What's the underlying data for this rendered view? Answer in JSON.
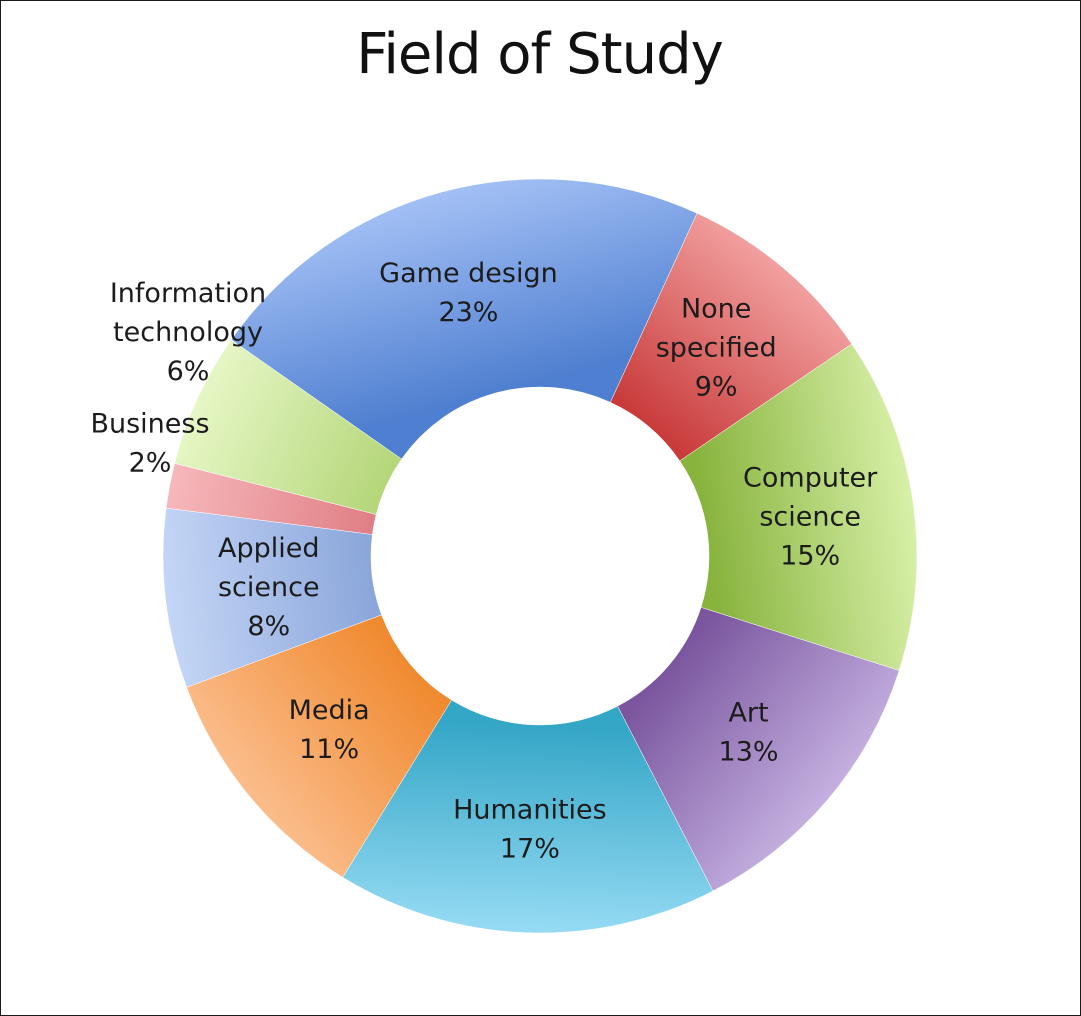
{
  "chart_data": {
    "type": "pie",
    "style": "doughnut",
    "title": "Field of Study",
    "legend": "none",
    "slices": [
      {
        "label_lines": [
          "Game design"
        ],
        "value": 23,
        "value_label": "23%",
        "color": "#4f7fd0",
        "color_light": "#a3c0f5"
      },
      {
        "label_lines": [
          "None",
          "specified"
        ],
        "value": 9,
        "value_label": "9%",
        "color": "#c93b3b",
        "color_light": "#f2a0a0"
      },
      {
        "label_lines": [
          "Computer",
          "science"
        ],
        "value": 15,
        "value_label": "15%",
        "color": "#88b43e",
        "color_light": "#d8f0a8"
      },
      {
        "label_lines": [
          "Art"
        ],
        "value": 13,
        "value_label": "13%",
        "color": "#7b569f",
        "color_light": "#c4b0e0"
      },
      {
        "label_lines": [
          "Humanities"
        ],
        "value": 17,
        "value_label": "17%",
        "color": "#34a6c6",
        "color_light": "#96dbf4"
      },
      {
        "label_lines": [
          "Media"
        ],
        "value": 11,
        "value_label": "11%",
        "color": "#f08a30",
        "color_light": "#fbbd8c"
      },
      {
        "label_lines": [
          "Applied",
          "science"
        ],
        "value": 8,
        "value_label": "8%",
        "color": "#8ba6db",
        "color_light": "#c4d6f6"
      },
      {
        "label_lines": [
          "Business"
        ],
        "value": 2,
        "value_label": "2%",
        "color": "#e07f85",
        "color_light": "#f6b8bb"
      },
      {
        "label_lines": [
          "Information",
          "technology"
        ],
        "value": 6,
        "value_label": "6%",
        "color": "#b5d679",
        "color_light": "#e6f7c6"
      }
    ]
  }
}
